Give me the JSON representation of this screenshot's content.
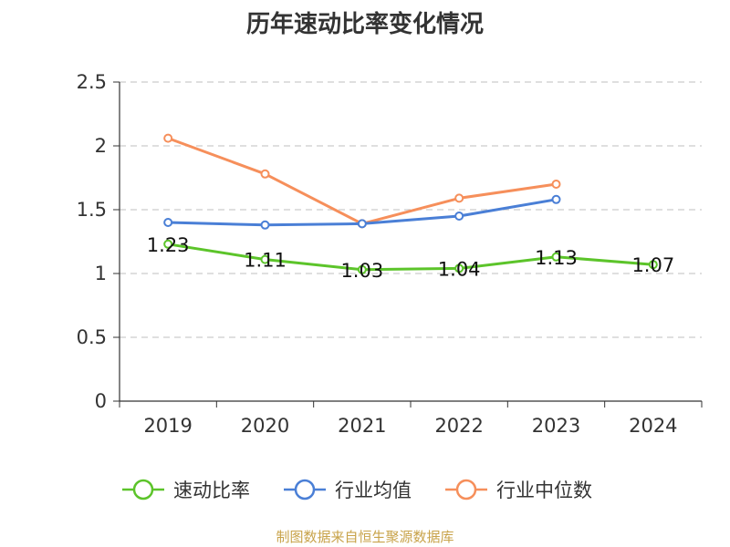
{
  "chart_data": {
    "type": "line",
    "title": "历年速动比率变化情况",
    "categories": [
      "2019",
      "2020",
      "2021",
      "2022",
      "2023",
      "2024"
    ],
    "ylim": [
      0,
      2.5
    ],
    "yticks": [
      "0",
      "0.5",
      "1",
      "1.5",
      "2",
      "2.5"
    ],
    "grid": true,
    "legend_position": "bottom",
    "series": [
      {
        "name": "速动比率",
        "color": "#5cc42a",
        "values": [
          1.23,
          1.11,
          1.03,
          1.04,
          1.13,
          1.07
        ],
        "labels": [
          "1.23",
          "1.11",
          "1.03",
          "1.04",
          "1.13",
          "1.07"
        ]
      },
      {
        "name": "行业均值",
        "color": "#4a7fd6",
        "values": [
          1.4,
          1.38,
          1.39,
          1.45,
          1.58,
          null
        ],
        "labels": null
      },
      {
        "name": "行业中位数",
        "color": "#f68f5b",
        "values": [
          2.06,
          1.78,
          1.39,
          1.59,
          1.7,
          null
        ],
        "labels": null
      }
    ]
  },
  "footer": {
    "source": "制图数据来自恒生聚源数据库"
  }
}
